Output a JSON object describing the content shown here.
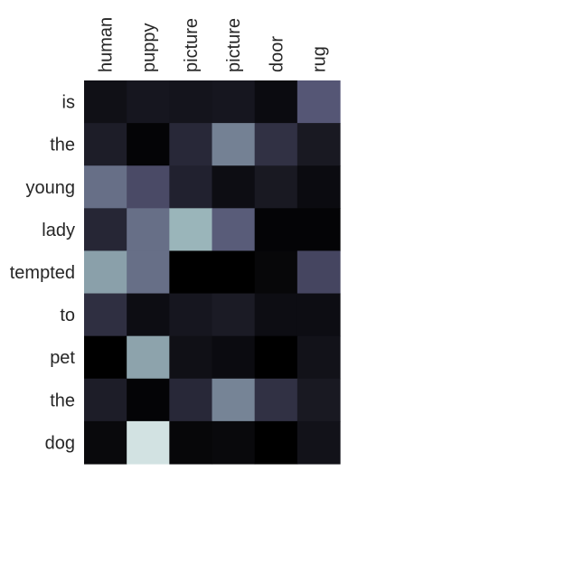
{
  "chart_data": {
    "type": "heatmap",
    "title": "",
    "x_labels": [
      "human",
      "puppy",
      "picture",
      "picture",
      "door",
      "rug"
    ],
    "y_labels": [
      "is",
      "the",
      "young",
      "lady",
      "tempted",
      "to",
      "pet",
      "the",
      "dog"
    ],
    "values": [
      [
        0.07,
        0.1,
        0.09,
        0.1,
        0.05,
        0.38
      ],
      [
        0.13,
        0.02,
        0.18,
        0.52,
        0.22,
        0.11
      ],
      [
        0.46,
        0.33,
        0.15,
        0.06,
        0.11,
        0.05
      ],
      [
        0.17,
        0.46,
        0.69,
        0.4,
        0.02,
        0.02
      ],
      [
        0.62,
        0.46,
        0.0,
        0.0,
        0.03,
        0.31
      ],
      [
        0.21,
        0.06,
        0.1,
        0.12,
        0.06,
        0.06
      ],
      [
        0.0,
        0.63,
        0.07,
        0.05,
        0.0,
        0.08
      ],
      [
        0.13,
        0.02,
        0.18,
        0.53,
        0.22,
        0.11
      ],
      [
        0.04,
        0.87,
        0.03,
        0.04,
        0.0,
        0.08
      ]
    ],
    "colormap": "bone",
    "vmin": 0,
    "vmax": 1,
    "colorbar": false
  }
}
